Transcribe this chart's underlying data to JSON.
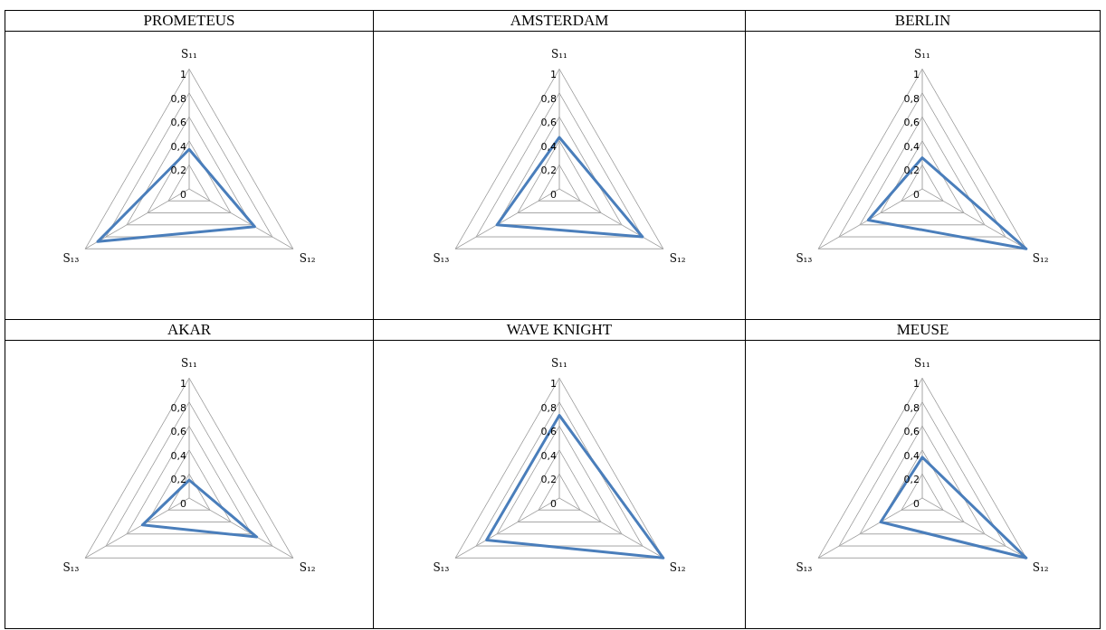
{
  "chart_data": [
    {
      "type": "radar",
      "title": "PROMETEUS",
      "categories": [
        "S₁₁",
        "S₁₂",
        "S₁₃"
      ],
      "series": [
        {
          "color": "#4a7ebb",
          "values": [
            0.33,
            0.63,
            0.88
          ]
        }
      ],
      "ylim": [
        0,
        1
      ],
      "yticks": [
        {
          "value": 0,
          "label": "0"
        },
        {
          "value": 0.2,
          "label": "0,2"
        },
        {
          "value": 0.4,
          "label": "0,4"
        },
        {
          "value": 0.6,
          "label": "0,6"
        },
        {
          "value": 0.8,
          "label": "0,8"
        },
        {
          "value": 1,
          "label": "1"
        }
      ],
      "grid": true,
      "marker": "none",
      "legend": false
    },
    {
      "type": "radar",
      "title": "AMSTERDAM",
      "categories": [
        "S₁₁",
        "S₁₂",
        "S₁₃"
      ],
      "series": [
        {
          "color": "#4a7ebb",
          "values": [
            0.43,
            0.8,
            0.6
          ]
        }
      ],
      "ylim": [
        0,
        1
      ],
      "yticks": [
        {
          "value": 0,
          "label": "0"
        },
        {
          "value": 0.2,
          "label": "0,2"
        },
        {
          "value": 0.4,
          "label": "0,4"
        },
        {
          "value": 0.6,
          "label": "0,6"
        },
        {
          "value": 0.8,
          "label": "0,8"
        },
        {
          "value": 1,
          "label": "1"
        }
      ],
      "grid": true,
      "marker": "none",
      "legend": false
    },
    {
      "type": "radar",
      "title": "BERLIN",
      "categories": [
        "S₁₁",
        "S₁₂",
        "S₁₃"
      ],
      "series": [
        {
          "color": "#4a7ebb",
          "values": [
            0.26,
            1,
            0.52
          ]
        }
      ],
      "ylim": [
        0,
        1
      ],
      "yticks": [
        {
          "value": 0,
          "label": "0"
        },
        {
          "value": 0.2,
          "label": "0,2"
        },
        {
          "value": 0.4,
          "label": "0,4"
        },
        {
          "value": 0.6,
          "label": "0,6"
        },
        {
          "value": 0.8,
          "label": "0,8"
        },
        {
          "value": 1,
          "label": "1"
        }
      ],
      "grid": true,
      "marker": "none",
      "legend": false
    },
    {
      "type": "radar",
      "title": "AKAR",
      "categories": [
        "S₁₁",
        "S₁₂",
        "S₁₃"
      ],
      "series": [
        {
          "color": "#4a7ebb",
          "values": [
            0.15,
            0.65,
            0.45
          ]
        }
      ],
      "ylim": [
        0,
        1
      ],
      "yticks": [
        {
          "value": 0,
          "label": "0"
        },
        {
          "value": 0.2,
          "label": "0,2"
        },
        {
          "value": 0.4,
          "label": "0,4"
        },
        {
          "value": 0.6,
          "label": "0,6"
        },
        {
          "value": 0.8,
          "label": "0,8"
        },
        {
          "value": 1,
          "label": "1"
        }
      ],
      "grid": true,
      "marker": "none",
      "legend": false
    },
    {
      "type": "radar",
      "title": "WAVE KNIGHT",
      "categories": [
        "S₁₁",
        "S₁₂",
        "S₁₃"
      ],
      "series": [
        {
          "color": "#4a7ebb",
          "values": [
            0.69,
            1,
            0.7
          ]
        }
      ],
      "ylim": [
        0,
        1
      ],
      "yticks": [
        {
          "value": 0,
          "label": "0"
        },
        {
          "value": 0.2,
          "label": "0,2"
        },
        {
          "value": 0.4,
          "label": "0,4"
        },
        {
          "value": 0.6,
          "label": "0,6"
        },
        {
          "value": 0.8,
          "label": "0,8"
        },
        {
          "value": 1,
          "label": "1"
        }
      ],
      "grid": true,
      "marker": "none",
      "legend": false
    },
    {
      "type": "radar",
      "title": "MEUSE",
      "categories": [
        "S₁₁",
        "S₁₂",
        "S₁₃"
      ],
      "series": [
        {
          "color": "#4a7ebb",
          "values": [
            0.34,
            1,
            0.4
          ]
        }
      ],
      "ylim": [
        0,
        1
      ],
      "yticks": [
        {
          "value": 0,
          "label": "0"
        },
        {
          "value": 0.2,
          "label": "0,2"
        },
        {
          "value": 0.4,
          "label": "0,4"
        },
        {
          "value": 0.6,
          "label": "0,6"
        },
        {
          "value": 0.8,
          "label": "0,8"
        },
        {
          "value": 1,
          "label": "1"
        }
      ],
      "grid": true,
      "marker": "none",
      "legend": false
    }
  ]
}
